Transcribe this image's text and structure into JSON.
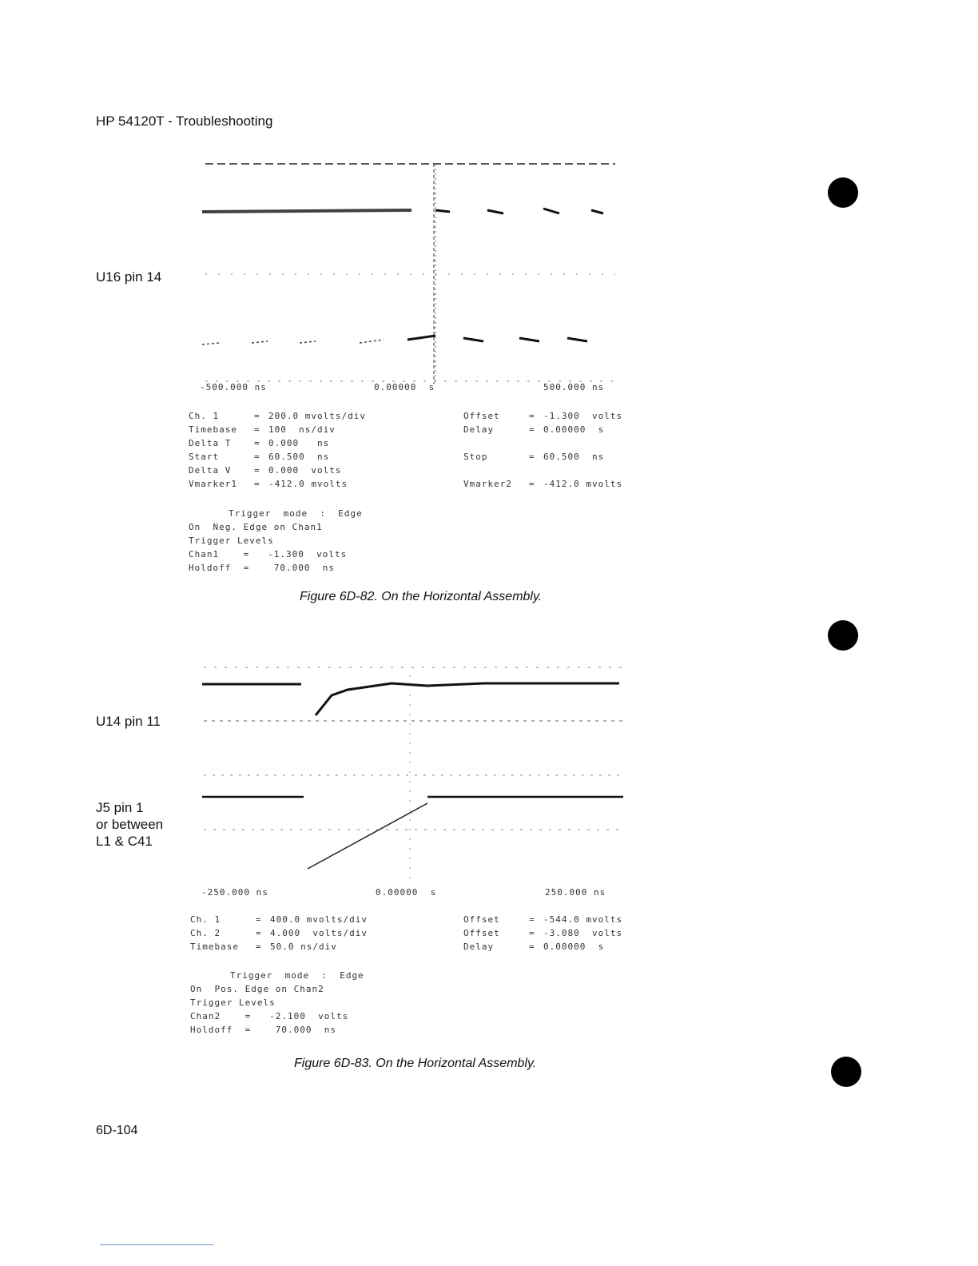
{
  "header": "HP 54120T - Troubleshooting",
  "page_number": "6D-104",
  "figure1": {
    "signal_label": "U16 pin 14",
    "axis": {
      "left": "-500.000 ns",
      "center": "0.00000  s",
      "right": "500.000 ns"
    },
    "params_left": [
      [
        "Ch. 1",
        "=",
        "200.0 mvolts/div"
      ],
      [
        "Timebase",
        "=",
        "100  ns/div"
      ],
      [
        "Delta T",
        "=",
        "0.000   ns"
      ],
      [
        "Start",
        "=",
        "60.500  ns"
      ],
      [
        "Delta V",
        "=",
        "0.000  volts"
      ],
      [
        "Vmarker1",
        "=",
        "-412.0 mvolts"
      ]
    ],
    "params_right": [
      [
        "Offset",
        "=",
        "-1.300  volts"
      ],
      [
        "Delay",
        "=",
        "0.00000  s"
      ],
      [
        "Stop",
        "=",
        "60.500  ns"
      ],
      [
        "Vmarker2",
        "=",
        "-412.0 mvolts"
      ]
    ],
    "trigger": [
      "Trigger  mode  :  Edge",
      "On  Neg. Edge on Chan1",
      "Trigger Levels",
      "Chan1    =   -1.300  volts",
      "Holdoff  =    70.000  ns"
    ],
    "caption": "Figure 6D-82.  On the Horizontal Assembly."
  },
  "figure2": {
    "signal_label_1": "U14 pin 11",
    "signal_label_2": [
      "J5 pin 1",
      "or between",
      "L1 & C41"
    ],
    "axis": {
      "left": "-250.000 ns",
      "center": "0.00000  s",
      "right": "250.000 ns"
    },
    "params_left": [
      [
        "Ch. 1",
        "=",
        "400.0 mvolts/div"
      ],
      [
        "Ch. 2",
        "=",
        "4.000  volts/div"
      ],
      [
        "Timebase",
        "=",
        "50.0 ns/div"
      ]
    ],
    "params_right": [
      [
        "Offset",
        "=",
        "-544.0 mvolts"
      ],
      [
        "Offset",
        "=",
        "-3.080  volts"
      ],
      [
        "Delay",
        "=",
        "0.00000  s"
      ]
    ],
    "trigger": [
      "Trigger  mode  :  Edge",
      "On  Pos. Edge on Chan2",
      "Trigger Levels",
      "Chan2    =   -2.100  volts",
      "Holdoff  =    70.000  ns"
    ],
    "caption": "Figure 6D-83.  On the Horizontal Assembly."
  }
}
